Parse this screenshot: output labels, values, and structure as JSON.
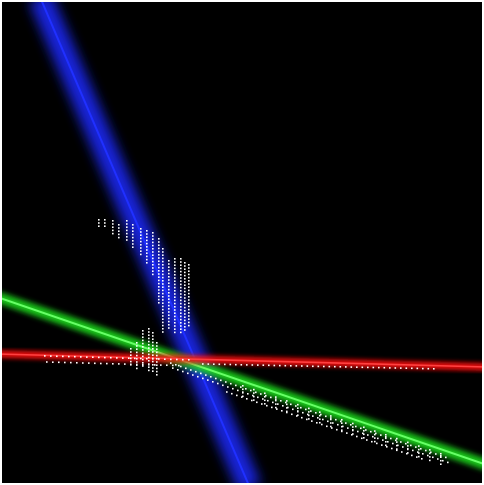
{
  "scene": {
    "background_color": "#000000",
    "frame_color": "#ffffff",
    "lines": [
      {
        "name": "blue-line",
        "color": "#0000ff",
        "glow_color": "#1a2aff"
      },
      {
        "name": "green-line",
        "color": "#00ff00",
        "glow_color": "#2ee62e"
      },
      {
        "name": "red-line",
        "color": "#ff0000",
        "glow_color": "#ff1a1a"
      }
    ],
    "point_cloud": {
      "name": "white-point-cloud",
      "color": "#ffffff"
    }
  }
}
